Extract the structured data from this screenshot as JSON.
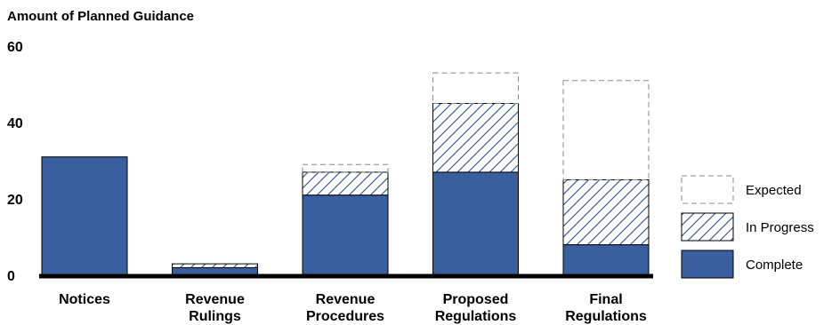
{
  "chart_data": {
    "type": "bar",
    "stacked": true,
    "ylabel": "Amount of Planned Guidance",
    "ylim": [
      0,
      60
    ],
    "yticks": [
      0,
      20,
      40,
      60
    ],
    "grid": false,
    "legend_position": "right",
    "categories": [
      [
        "Notices"
      ],
      [
        "Revenue",
        "Rulings"
      ],
      [
        "Revenue",
        "Procedures"
      ],
      [
        "Proposed",
        "Regulations"
      ],
      [
        "Final",
        "Regulations"
      ]
    ],
    "series": [
      {
        "name": "Complete",
        "style": "solid",
        "color": "#3a5f9f",
        "values": [
          31,
          2,
          21,
          27,
          8
        ]
      },
      {
        "name": "In Progress",
        "style": "hatched",
        "color": "#3a5f9f",
        "values": [
          0,
          1,
          6,
          18,
          17
        ]
      },
      {
        "name": "Expected",
        "style": "dashed-outline",
        "color": "#888888",
        "values": [
          0,
          0,
          2,
          8,
          26
        ]
      }
    ],
    "legend_order": [
      "Expected",
      "In Progress",
      "Complete"
    ]
  }
}
